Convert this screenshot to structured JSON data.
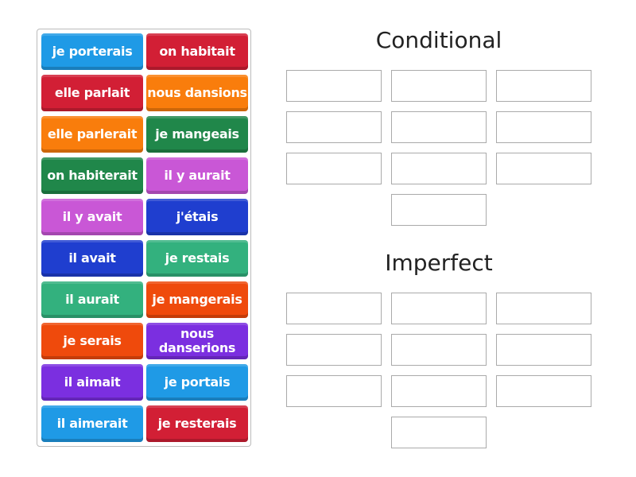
{
  "tiles": [
    {
      "label": "je porterais",
      "color": "#1f9ae6"
    },
    {
      "label": "on habitait",
      "color": "#d21f35"
    },
    {
      "label": "elle parlait",
      "color": "#d21f35"
    },
    {
      "label": "nous dansions",
      "color": "#f97d0c"
    },
    {
      "label": "elle parlerait",
      "color": "#f97d0c"
    },
    {
      "label": "je mangeais",
      "color": "#20874a"
    },
    {
      "label": "on habiterait",
      "color": "#20874a"
    },
    {
      "label": "il y aurait",
      "color": "#c957d6"
    },
    {
      "label": "il y avait",
      "color": "#c957d6"
    },
    {
      "label": "j'étais",
      "color": "#1f3ecf"
    },
    {
      "label": "il avait",
      "color": "#1f3ecf"
    },
    {
      "label": "je restais",
      "color": "#33b17e"
    },
    {
      "label": "il aurait",
      "color": "#33b17e"
    },
    {
      "label": "je mangerais",
      "color": "#ef4a0c"
    },
    {
      "label": "je serais",
      "color": "#ef4a0c"
    },
    {
      "label": "nous danserions",
      "color": "#7b2fe0"
    },
    {
      "label": "il aimait",
      "color": "#7b2fe0"
    },
    {
      "label": "je portais",
      "color": "#1f9ae6"
    },
    {
      "label": "il aimerait",
      "color": "#1f9ae6"
    },
    {
      "label": "je resterais",
      "color": "#d21f35"
    }
  ],
  "groups": [
    {
      "title": "Conditional",
      "slots": 10
    },
    {
      "title": "Imperfect",
      "slots": 10
    }
  ]
}
